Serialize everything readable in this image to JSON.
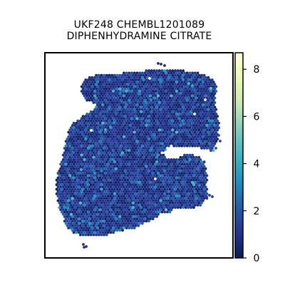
{
  "chart_data": {
    "type": "heatmap",
    "title": "UKF248 CHEMBL1201089",
    "subtitle": "DIPHENHYDRAMINE CITRATE",
    "xlabel": "",
    "ylabel": "",
    "grid": false,
    "colorbar": {
      "colormap": "YlGnBu",
      "range": [
        0,
        8.7
      ],
      "ticks": [
        0,
        2,
        4,
        6,
        8
      ],
      "tick_labels": [
        "0",
        "2",
        "4",
        "6",
        "8"
      ],
      "stops": [
        "#081d58",
        "#253494",
        "#225ea8",
        "#1d91c0",
        "#41b6c4",
        "#7fcdbb",
        "#c7e9b4",
        "#edf8b1",
        "#ffffd9"
      ]
    },
    "tissue_value_summary": {
      "typical_value": 1.0,
      "max_value": 8.7,
      "note_values": "most spots between 0 and 2; a few spots 3–5"
    }
  }
}
